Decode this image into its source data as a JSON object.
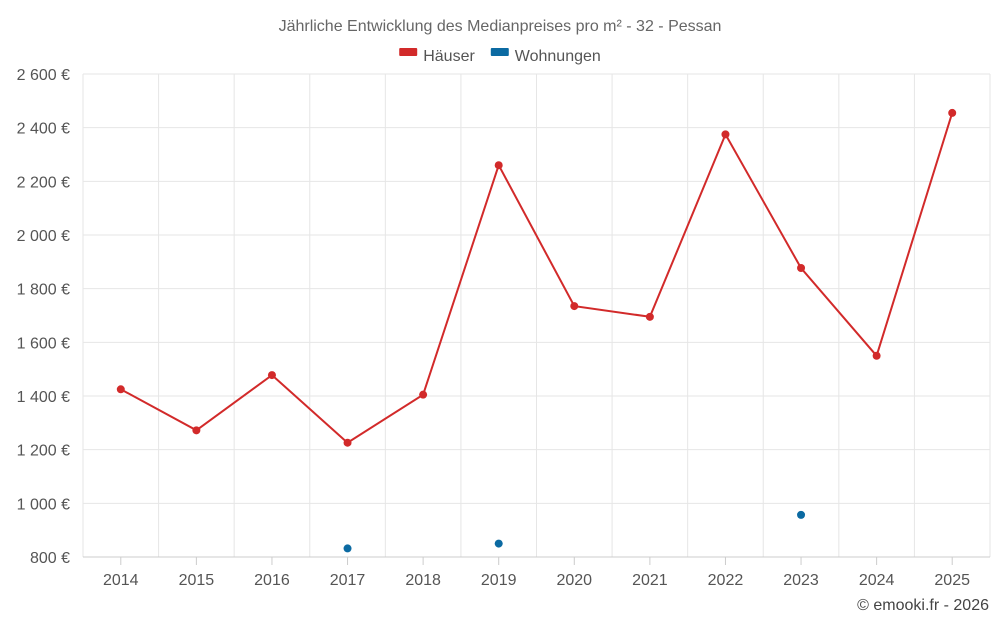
{
  "chart_data": {
    "type": "line",
    "title": "Jährliche Entwicklung des Medianpreises pro m² - 32 - Pessan",
    "categories": [
      "2014",
      "2015",
      "2016",
      "2017",
      "2018",
      "2019",
      "2020",
      "2021",
      "2022",
      "2023",
      "2024",
      "2025"
    ],
    "series": [
      {
        "name": "Häuser",
        "color": "#d22a2a",
        "values": [
          1425,
          1272,
          1478,
          1226,
          1405,
          2260,
          1735,
          1695,
          2375,
          1877,
          1550,
          2455
        ]
      },
      {
        "name": "Wohnungen",
        "color": "#0b6aa2",
        "values": [
          null,
          null,
          null,
          832,
          null,
          850,
          null,
          null,
          null,
          957,
          null,
          null
        ]
      }
    ],
    "ylim": [
      800,
      2600
    ],
    "yticks": [
      800,
      1000,
      1200,
      1400,
      1600,
      1800,
      2000,
      2200,
      2400,
      2600
    ],
    "ytick_labels": [
      "800 €",
      "1 000 €",
      "1 200 €",
      "1 400 €",
      "1 600 €",
      "1 800 €",
      "2 000 €",
      "2 200 €",
      "2 400 €",
      "2 600 €"
    ],
    "grid": true,
    "legend_position": "top-center",
    "credit": "© emooki.fr - 2026"
  }
}
